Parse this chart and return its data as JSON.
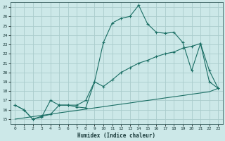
{
  "xlabel": "Humidex (Indice chaleur)",
  "background_color": "#cce8e8",
  "grid_color": "#aacccc",
  "line_color": "#1a6e64",
  "x_values": [
    0,
    1,
    2,
    3,
    4,
    5,
    6,
    7,
    8,
    9,
    10,
    11,
    12,
    13,
    14,
    15,
    16,
    17,
    18,
    19,
    20,
    21,
    22,
    23
  ],
  "line1_y": [
    16.5,
    16.0,
    15.0,
    15.2,
    17.0,
    16.5,
    16.5,
    16.3,
    16.2,
    19.0,
    23.2,
    25.3,
    25.8,
    26.0,
    27.2,
    25.2,
    24.3,
    24.2,
    24.3,
    23.2,
    20.2,
    23.1,
    19.0,
    18.3
  ],
  "line2_y": [
    16.5,
    16.0,
    15.0,
    15.3,
    15.5,
    16.5,
    16.5,
    16.5,
    17.0,
    19.0,
    18.5,
    19.2,
    20.0,
    20.5,
    21.0,
    21.3,
    21.7,
    22.0,
    22.2,
    22.6,
    22.8,
    23.1,
    20.2,
    18.3
  ],
  "line3_y": [
    15.0,
    15.13,
    15.27,
    15.4,
    15.53,
    15.67,
    15.8,
    15.93,
    16.07,
    16.2,
    16.33,
    16.47,
    16.6,
    16.73,
    16.87,
    17.0,
    17.13,
    17.27,
    17.4,
    17.53,
    17.67,
    17.8,
    17.93,
    18.3
  ],
  "ylim": [
    14.5,
    27.5
  ],
  "xlim": [
    -0.5,
    23.5
  ],
  "yticks": [
    15,
    16,
    17,
    18,
    19,
    20,
    21,
    22,
    23,
    24,
    25,
    26,
    27
  ],
  "xticks": [
    0,
    1,
    2,
    3,
    4,
    5,
    6,
    7,
    8,
    9,
    10,
    11,
    12,
    13,
    14,
    15,
    16,
    17,
    18,
    19,
    20,
    21,
    22,
    23
  ]
}
